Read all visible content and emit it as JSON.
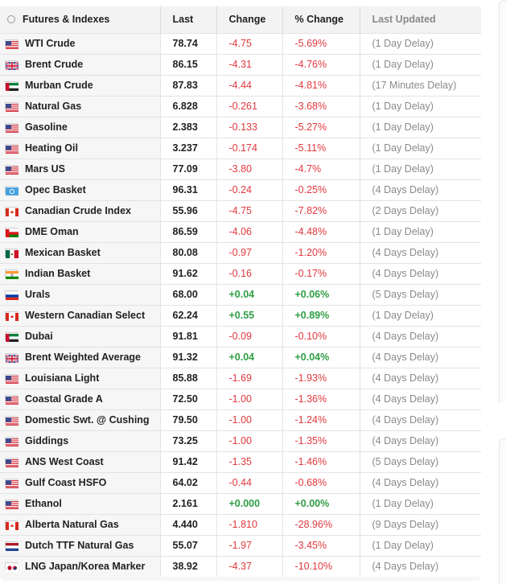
{
  "header": {
    "name": "Futures & Indexes",
    "last": "Last",
    "change": "Change",
    "pct_change": "% Change",
    "updated": "Last Updated"
  },
  "colors": {
    "negative": "#e0393e",
    "positive": "#2f9e44",
    "muted": "#8a8a8a"
  },
  "rows": [
    {
      "name": "WTI Crude",
      "flag": "us",
      "last": "78.74",
      "change": "-4.75",
      "pct": "-5.69%",
      "updated": "(1 Day Delay)",
      "dir": "neg"
    },
    {
      "name": "Brent Crude",
      "flag": "uk",
      "last": "86.15",
      "change": "-4.31",
      "pct": "-4.76%",
      "updated": "(1 Day Delay)",
      "dir": "neg"
    },
    {
      "name": "Murban Crude",
      "flag": "ae",
      "last": "87.83",
      "change": "-4.44",
      "pct": "-4.81%",
      "updated": "(17 Minutes Delay)",
      "dir": "neg"
    },
    {
      "name": "Natural Gas",
      "flag": "us",
      "last": "6.828",
      "change": "-0.261",
      "pct": "-3.68%",
      "updated": "(1 Day Delay)",
      "dir": "neg"
    },
    {
      "name": "Gasoline",
      "flag": "us",
      "last": "2.383",
      "change": "-0.133",
      "pct": "-5.27%",
      "updated": "(1 Day Delay)",
      "dir": "neg"
    },
    {
      "name": "Heating Oil",
      "flag": "us",
      "last": "3.237",
      "change": "-0.174",
      "pct": "-5.11%",
      "updated": "(1 Day Delay)",
      "dir": "neg"
    },
    {
      "name": "Mars US",
      "flag": "us",
      "last": "77.09",
      "change": "-3.80",
      "pct": "-4.7%",
      "updated": "(1 Day Delay)",
      "dir": "neg"
    },
    {
      "name": "Opec Basket",
      "flag": "opec",
      "last": "96.31",
      "change": "-0.24",
      "pct": "-0.25%",
      "updated": "(4 Days Delay)",
      "dir": "neg"
    },
    {
      "name": "Canadian Crude Index",
      "flag": "ca",
      "last": "55.96",
      "change": "-4.75",
      "pct": "-7.82%",
      "updated": "(2 Days Delay)",
      "dir": "neg"
    },
    {
      "name": "DME Oman",
      "flag": "om",
      "last": "86.59",
      "change": "-4.06",
      "pct": "-4.48%",
      "updated": "(1 Day Delay)",
      "dir": "neg"
    },
    {
      "name": "Mexican Basket",
      "flag": "mx",
      "last": "80.08",
      "change": "-0.97",
      "pct": "-1.20%",
      "updated": "(4 Days Delay)",
      "dir": "neg"
    },
    {
      "name": "Indian Basket",
      "flag": "in",
      "last": "91.62",
      "change": "-0.16",
      "pct": "-0.17%",
      "updated": "(4 Days Delay)",
      "dir": "neg"
    },
    {
      "name": "Urals",
      "flag": "ru",
      "last": "68.00",
      "change": "+0.04",
      "pct": "+0.06%",
      "updated": "(5 Days Delay)",
      "dir": "pos"
    },
    {
      "name": "Western Canadian Select",
      "flag": "ca",
      "last": "62.24",
      "change": "+0.55",
      "pct": "+0.89%",
      "updated": "(1 Day Delay)",
      "dir": "pos"
    },
    {
      "name": "Dubai",
      "flag": "ae",
      "last": "91.81",
      "change": "-0.09",
      "pct": "-0.10%",
      "updated": "(4 Days Delay)",
      "dir": "neg"
    },
    {
      "name": "Brent Weighted Average",
      "flag": "uk",
      "last": "91.32",
      "change": "+0.04",
      "pct": "+0.04%",
      "updated": "(4 Days Delay)",
      "dir": "pos"
    },
    {
      "name": "Louisiana Light",
      "flag": "us",
      "last": "85.88",
      "change": "-1.69",
      "pct": "-1.93%",
      "updated": "(4 Days Delay)",
      "dir": "neg"
    },
    {
      "name": "Coastal Grade A",
      "flag": "us",
      "last": "72.50",
      "change": "-1.00",
      "pct": "-1.36%",
      "updated": "(4 Days Delay)",
      "dir": "neg"
    },
    {
      "name": "Domestic Swt. @ Cushing",
      "flag": "us",
      "last": "79.50",
      "change": "-1.00",
      "pct": "-1.24%",
      "updated": "(4 Days Delay)",
      "dir": "neg"
    },
    {
      "name": "Giddings",
      "flag": "us",
      "last": "73.25",
      "change": "-1.00",
      "pct": "-1.35%",
      "updated": "(4 Days Delay)",
      "dir": "neg"
    },
    {
      "name": "ANS West Coast",
      "flag": "us",
      "last": "91.42",
      "change": "-1.35",
      "pct": "-1.46%",
      "updated": "(5 Days Delay)",
      "dir": "neg"
    },
    {
      "name": "Gulf Coast HSFO",
      "flag": "us",
      "last": "64.02",
      "change": "-0.44",
      "pct": "-0.68%",
      "updated": "(4 Days Delay)",
      "dir": "neg"
    },
    {
      "name": "Ethanol",
      "flag": "us",
      "last": "2.161",
      "change": "+0.000",
      "pct": "+0.00%",
      "updated": "(1 Day Delay)",
      "dir": "pos"
    },
    {
      "name": "Alberta Natural Gas",
      "flag": "ca",
      "last": "4.440",
      "change": "-1.810",
      "pct": "-28.96%",
      "updated": "(9 Days Delay)",
      "dir": "neg"
    },
    {
      "name": "Dutch TTF Natural Gas",
      "flag": "nl",
      "last": "55.07",
      "change": "-1.97",
      "pct": "-3.45%",
      "updated": "(1 Day Delay)",
      "dir": "neg"
    },
    {
      "name": "LNG Japan/Korea Marker",
      "flag": "jpkr",
      "last": "38.92",
      "change": "-4.37",
      "pct": "-10.10%",
      "updated": "(4 Days Delay)",
      "dir": "neg"
    }
  ]
}
